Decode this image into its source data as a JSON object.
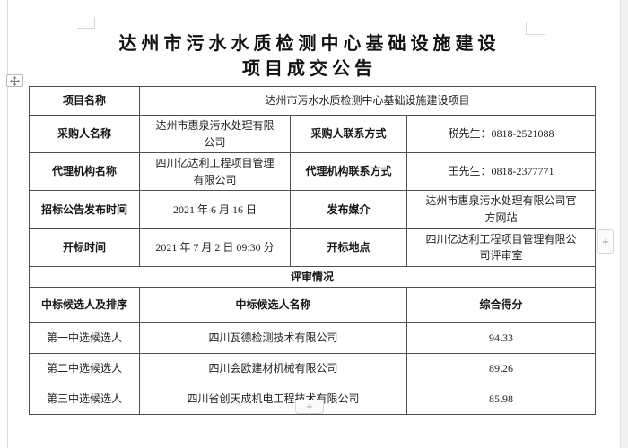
{
  "document": {
    "title_line1": "达州市污水水质检测中心基础设施建设",
    "title_line2": "项目成交公告"
  },
  "table": {
    "rows": [
      {
        "cells": [
          {
            "t": "项目名称",
            "b": true
          },
          {
            "t": "达州市污水水质检测中心基础设施建设项目",
            "c": 3
          }
        ]
      },
      {
        "cells": [
          {
            "t": "采购人名称",
            "b": true
          },
          {
            "t": "达州市惠泉污水处理有限公司"
          },
          {
            "t": "采购人联系方式",
            "b": true
          },
          {
            "t": "税先生：0818-2521088"
          }
        ]
      },
      {
        "cells": [
          {
            "t": "代理机构名称",
            "b": true
          },
          {
            "t": "四川亿达利工程项目管理有限公司"
          },
          {
            "t": "代理机构联系方式",
            "b": true
          },
          {
            "t": "王先生：0818-2377771"
          }
        ]
      },
      {
        "cells": [
          {
            "t": "招标公告发布时间",
            "b": true
          },
          {
            "t": "2021 年 6 月 16 日"
          },
          {
            "t": "发布媒介",
            "b": true
          },
          {
            "t": "达州市惠泉污水处理有限公司官方网站"
          }
        ]
      },
      {
        "cells": [
          {
            "t": "开标时间",
            "b": true
          },
          {
            "t": "2021 年 7 月 2 日 09:30 分"
          },
          {
            "t": "开标地点",
            "b": true
          },
          {
            "t": "四川亿达利工程项目管理有限公司评审室"
          }
        ]
      },
      {
        "cells": [
          {
            "t": "评审情况",
            "b": true,
            "c": 4
          }
        ]
      },
      {
        "cells": [
          {
            "t": "中标候选人及排序",
            "b": true
          },
          {
            "t": "中标候选人名称",
            "b": true,
            "c": 2
          },
          {
            "t": "综合得分",
            "b": true
          }
        ]
      },
      {
        "cells": [
          {
            "t": "第一中选候选人"
          },
          {
            "t": "四川瓦德检测技术有限公司",
            "c": 2
          },
          {
            "t": "94.33"
          }
        ]
      },
      {
        "cells": [
          {
            "t": "第二中选候选人"
          },
          {
            "t": "四川会欧建材机械有限公司",
            "c": 2
          },
          {
            "t": "89.26"
          }
        ]
      },
      {
        "cells": [
          {
            "t": "第三中选候选人"
          },
          {
            "t": "四川省创天成机电工程技术有限公司",
            "c": 2
          },
          {
            "t": "85.98"
          }
        ]
      }
    ]
  },
  "controls": {
    "add_column_button": "+",
    "add_row_button": "+"
  },
  "colors": {
    "table_border": "#4f4f4f",
    "text": "#1f1f1f",
    "control_border": "#d6d6d6",
    "control_plus": "#9a9a9a",
    "page_edge_mark": "#d8d8d8"
  }
}
